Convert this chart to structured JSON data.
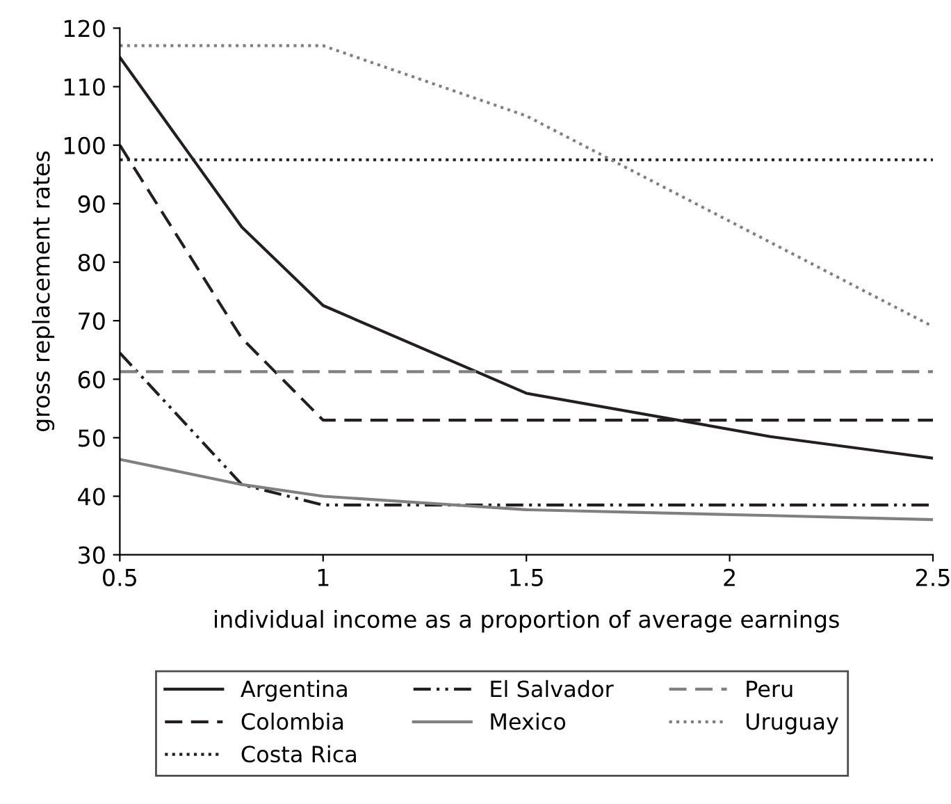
{
  "chart_data": {
    "type": "line",
    "xlabel": "individual income as a proportion of average earnings",
    "ylabel": "gross replacement rates",
    "xlim": [
      0.5,
      2.5
    ],
    "xticks": [
      0.5,
      1,
      1.5,
      2,
      2.5
    ],
    "ylim": [
      30,
      120
    ],
    "yticks": [
      30,
      40,
      50,
      60,
      70,
      80,
      90,
      100,
      110,
      120
    ],
    "grid": false,
    "legend": "bottom",
    "marker": "none",
    "series": [
      {
        "name": "Argentina",
        "color": "#231f20",
        "line_style": "solid",
        "x": [
          0.5,
          0.8,
          1,
          1.5,
          2.1,
          2.5
        ],
        "values": [
          115,
          86,
          72.6,
          57.6,
          50.2,
          46.5
        ]
      },
      {
        "name": "Colombia",
        "color": "#231f20",
        "line_style": "dashed",
        "x": [
          0.5,
          0.8,
          1,
          2.5
        ],
        "values": [
          100,
          67,
          53,
          53
        ]
      },
      {
        "name": "Costa Rica",
        "color": "#231f20",
        "line_style": "dotted",
        "x": [
          0.5,
          2.5
        ],
        "values": [
          97.5,
          97.5
        ]
      },
      {
        "name": "El Salvador",
        "color": "#231f20",
        "line_style": "dashdotdot",
        "x": [
          0.5,
          0.8,
          1,
          2.5
        ],
        "values": [
          64.5,
          42,
          38.5,
          38.5
        ]
      },
      {
        "name": "Mexico",
        "color": "#808080",
        "line_style": "solid",
        "x": [
          0.5,
          0.8,
          1,
          1.5,
          2.1,
          2.5
        ],
        "values": [
          46.3,
          42,
          40,
          37.7,
          36.7,
          36
        ]
      },
      {
        "name": "Peru",
        "color": "#808080",
        "line_style": "dashed",
        "x": [
          0.5,
          2.5
        ],
        "values": [
          61.3,
          61.3
        ]
      },
      {
        "name": "Uruguay",
        "color": "#808080",
        "line_style": "dotted",
        "x": [
          0.5,
          1,
          1.5,
          2.5
        ],
        "values": [
          117,
          117,
          105,
          69
        ]
      }
    ]
  }
}
